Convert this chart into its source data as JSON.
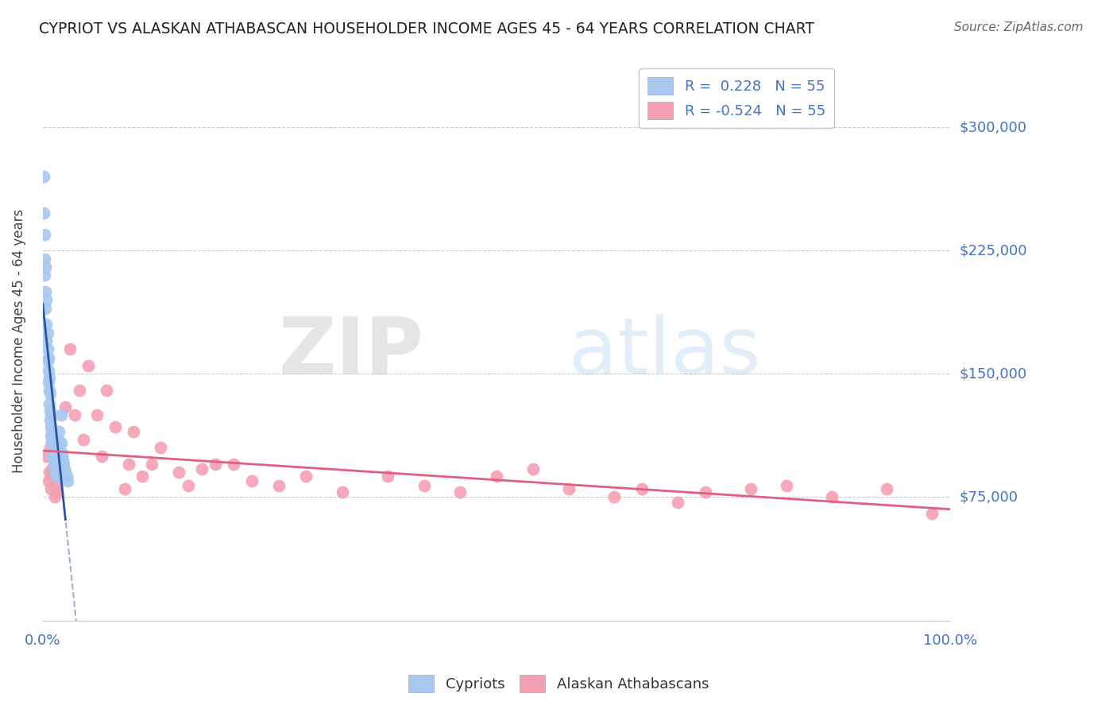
{
  "title": "CYPRIOT VS ALASKAN ATHABASCAN HOUSEHOLDER INCOME AGES 45 - 64 YEARS CORRELATION CHART",
  "source": "Source: ZipAtlas.com",
  "ylabel": "Householder Income Ages 45 - 64 years",
  "xlim": [
    0.0,
    1.0
  ],
  "ylim": [
    0,
    340000
  ],
  "yticks": [
    0,
    75000,
    150000,
    225000,
    300000
  ],
  "ytick_labels": [
    "",
    "$75,000",
    "$150,000",
    "$225,000",
    "$300,000"
  ],
  "cypriot_R": 0.228,
  "cypriot_N": 55,
  "athabascan_R": -0.524,
  "athabascan_N": 55,
  "cypriot_color": "#A8C8F0",
  "athabascan_color": "#F4A0B4",
  "cypriot_line_color": "#2855A0",
  "athabascan_line_color": "#E06080",
  "legend_border_color": "#BBBBBB",
  "grid_color": "#CCCCCC",
  "title_color": "#222222",
  "axis_label_color": "#444444",
  "tick_label_color": "#4472C4",
  "source_color": "#666666",
  "watermark_zip": "ZIP",
  "watermark_atlas": "atlas",
  "cypriot_x": [
    0.001,
    0.001,
    0.002,
    0.002,
    0.002,
    0.003,
    0.003,
    0.003,
    0.004,
    0.004,
    0.004,
    0.005,
    0.005,
    0.005,
    0.006,
    0.006,
    0.006,
    0.007,
    0.007,
    0.007,
    0.008,
    0.008,
    0.008,
    0.009,
    0.009,
    0.009,
    0.01,
    0.01,
    0.01,
    0.011,
    0.011,
    0.012,
    0.012,
    0.012,
    0.013,
    0.013,
    0.014,
    0.014,
    0.015,
    0.015,
    0.016,
    0.016,
    0.017,
    0.018,
    0.018,
    0.019,
    0.02,
    0.02,
    0.021,
    0.022,
    0.023,
    0.024,
    0.025,
    0.026,
    0.027
  ],
  "cypriot_y": [
    270000,
    248000,
    235000,
    220000,
    210000,
    200000,
    190000,
    215000,
    180000,
    170000,
    195000,
    165000,
    158000,
    175000,
    152000,
    145000,
    160000,
    140000,
    132000,
    148000,
    128000,
    122000,
    138000,
    118000,
    112000,
    125000,
    108000,
    102000,
    115000,
    100000,
    108000,
    97000,
    93000,
    105000,
    92000,
    99000,
    90000,
    96000,
    88000,
    94000,
    110000,
    100000,
    98000,
    106000,
    115000,
    95000,
    125000,
    108000,
    102000,
    98000,
    95000,
    92000,
    90000,
    88000,
    85000
  ],
  "athabascan_x": [
    0.004,
    0.006,
    0.007,
    0.008,
    0.009,
    0.01,
    0.011,
    0.012,
    0.013,
    0.014,
    0.015,
    0.016,
    0.018,
    0.02,
    0.022,
    0.025,
    0.03,
    0.035,
    0.04,
    0.045,
    0.05,
    0.06,
    0.065,
    0.07,
    0.08,
    0.09,
    0.095,
    0.1,
    0.11,
    0.12,
    0.13,
    0.15,
    0.16,
    0.175,
    0.19,
    0.21,
    0.23,
    0.26,
    0.29,
    0.33,
    0.38,
    0.42,
    0.46,
    0.5,
    0.54,
    0.58,
    0.63,
    0.66,
    0.7,
    0.73,
    0.78,
    0.82,
    0.87,
    0.93,
    0.98
  ],
  "athabascan_y": [
    100000,
    85000,
    90000,
    105000,
    80000,
    92000,
    88000,
    95000,
    75000,
    88000,
    82000,
    78000,
    95000,
    100000,
    88000,
    130000,
    165000,
    125000,
    140000,
    110000,
    155000,
    125000,
    100000,
    140000,
    118000,
    80000,
    95000,
    115000,
    88000,
    95000,
    105000,
    90000,
    82000,
    92000,
    95000,
    95000,
    85000,
    82000,
    88000,
    78000,
    88000,
    82000,
    78000,
    88000,
    92000,
    80000,
    75000,
    80000,
    72000,
    78000,
    80000,
    82000,
    75000,
    80000,
    65000
  ]
}
